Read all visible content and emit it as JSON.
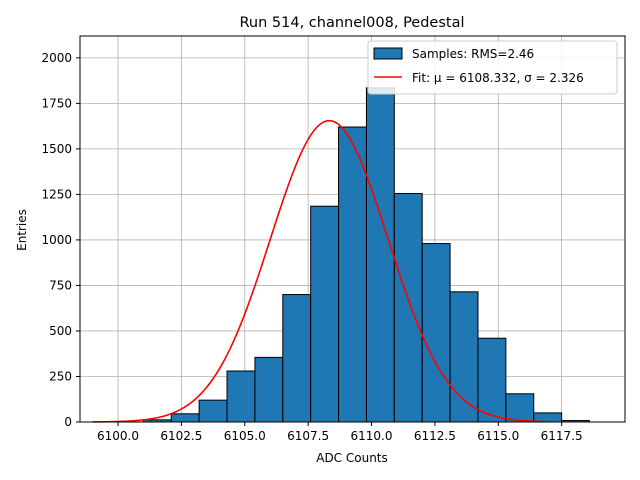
{
  "chart_data": {
    "type": "bar",
    "title": "Run 514, channel008, Pedestal",
    "xlabel": "ADC Counts",
    "ylabel": "Entries",
    "xlim": [
      6098.5,
      6120.0
    ],
    "ylim": [
      0,
      2120
    ],
    "x_ticks": [
      "6100.0",
      "6102.5",
      "6105.0",
      "6107.5",
      "6110.0",
      "6112.5",
      "6115.0",
      "6117.5"
    ],
    "x_tick_values": [
      6100.0,
      6102.5,
      6105.0,
      6107.5,
      6110.0,
      6112.5,
      6115.0,
      6117.5
    ],
    "y_ticks": [
      "0",
      "250",
      "500",
      "750",
      "1000",
      "1250",
      "1500",
      "1750",
      "2000"
    ],
    "y_tick_values": [
      0,
      250,
      500,
      750,
      1000,
      1250,
      1500,
      1750,
      2000
    ],
    "grid": true,
    "legend_position": "top-right",
    "series": [
      {
        "name": "Samples: RMS=2.46",
        "kind": "histogram",
        "color": "#1f77b4",
        "edge_color": "#000000",
        "bin_edges": [
          6099.9,
          6101.0,
          6102.1,
          6103.2,
          6104.3,
          6105.4,
          6106.5,
          6107.6,
          6108.7,
          6109.8,
          6110.9,
          6112.0,
          6113.1,
          6114.2,
          6115.3,
          6116.4,
          6117.5,
          6118.6
        ],
        "values": [
          0,
          12,
          45,
          120,
          280,
          355,
          700,
          1185,
          1620,
          1835,
          1255,
          980,
          715,
          460,
          155,
          50,
          8
        ]
      },
      {
        "name": "Fit: μ = 6108.332, σ = 2.326",
        "kind": "gaussian",
        "color": "#ff0000",
        "mu": 6108.332,
        "sigma": 2.326,
        "amplitude": 1655,
        "x_range": [
          6099.0,
          6117.0
        ]
      }
    ]
  }
}
